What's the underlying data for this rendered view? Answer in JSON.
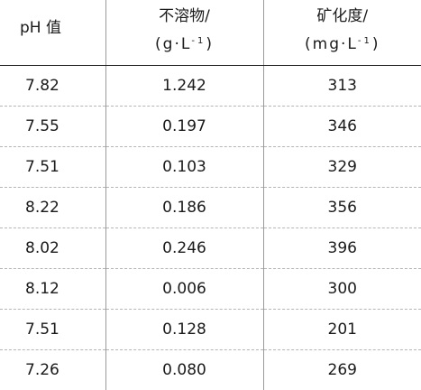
{
  "table": {
    "headers": {
      "ph": "pH 值",
      "insoluble_title": "不溶物/",
      "insoluble_unit_main": "(g·L",
      "insoluble_unit_sup": "-1",
      "insoluble_unit_close": ")",
      "mineral_title": "矿化度/",
      "mineral_unit_main": "(mg·L",
      "mineral_unit_sup": "-1",
      "mineral_unit_close": ")"
    },
    "rows": [
      {
        "ph": "7.82",
        "insoluble": "1.242",
        "mineral": "313"
      },
      {
        "ph": "7.55",
        "insoluble": "0.197",
        "mineral": "346"
      },
      {
        "ph": "7.51",
        "insoluble": "0.103",
        "mineral": "329"
      },
      {
        "ph": "8.22",
        "insoluble": "0.186",
        "mineral": "356"
      },
      {
        "ph": "8.02",
        "insoluble": "0.246",
        "mineral": "396"
      },
      {
        "ph": "8.12",
        "insoluble": "0.006",
        "mineral": "300"
      },
      {
        "ph": "7.51",
        "insoluble": "0.128",
        "mineral": "201"
      },
      {
        "ph": "7.26",
        "insoluble": "0.080",
        "mineral": "269"
      }
    ]
  }
}
